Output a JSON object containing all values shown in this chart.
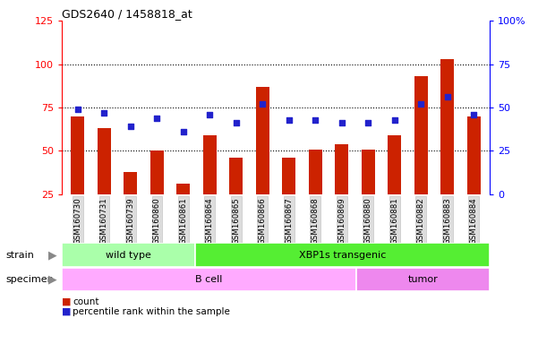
{
  "title": "GDS2640 / 1458818_at",
  "samples": [
    "GSM160730",
    "GSM160731",
    "GSM160739",
    "GSM160860",
    "GSM160861",
    "GSM160864",
    "GSM160865",
    "GSM160866",
    "GSM160867",
    "GSM160868",
    "GSM160869",
    "GSM160880",
    "GSM160881",
    "GSM160882",
    "GSM160883",
    "GSM160884"
  ],
  "counts": [
    70,
    63,
    38,
    50,
    31,
    59,
    46,
    87,
    46,
    51,
    54,
    51,
    59,
    93,
    103,
    70
  ],
  "percentiles": [
    49,
    47,
    39,
    44,
    36,
    46,
    41,
    52,
    43,
    43,
    41,
    41,
    43,
    52,
    56,
    46
  ],
  "left_ylim": [
    25,
    125
  ],
  "left_yticks": [
    25,
    50,
    75,
    100,
    125
  ],
  "right_ylim": [
    0,
    100
  ],
  "right_yticks": [
    0,
    25,
    50,
    75,
    100
  ],
  "right_yticklabels": [
    "0",
    "25",
    "50",
    "75",
    "100%"
  ],
  "bar_color": "#CC2200",
  "dot_color": "#2222CC",
  "strain_groups": [
    {
      "label": "wild type",
      "start": 0,
      "end": 5,
      "color": "#AAFFAA"
    },
    {
      "label": "XBP1s transgenic",
      "start": 5,
      "end": 16,
      "color": "#55EE33"
    }
  ],
  "specimen_groups": [
    {
      "label": "B cell",
      "start": 0,
      "end": 11,
      "color": "#FFAAFF"
    },
    {
      "label": "tumor",
      "start": 11,
      "end": 16,
      "color": "#EE88EE"
    }
  ],
  "xlabel_strain": "strain",
  "xlabel_specimen": "specimen",
  "legend_count_label": "count",
  "legend_pct_label": "percentile rank within the sample",
  "bg_color": "#FFFFFF",
  "tick_label_bg": "#DDDDDD"
}
